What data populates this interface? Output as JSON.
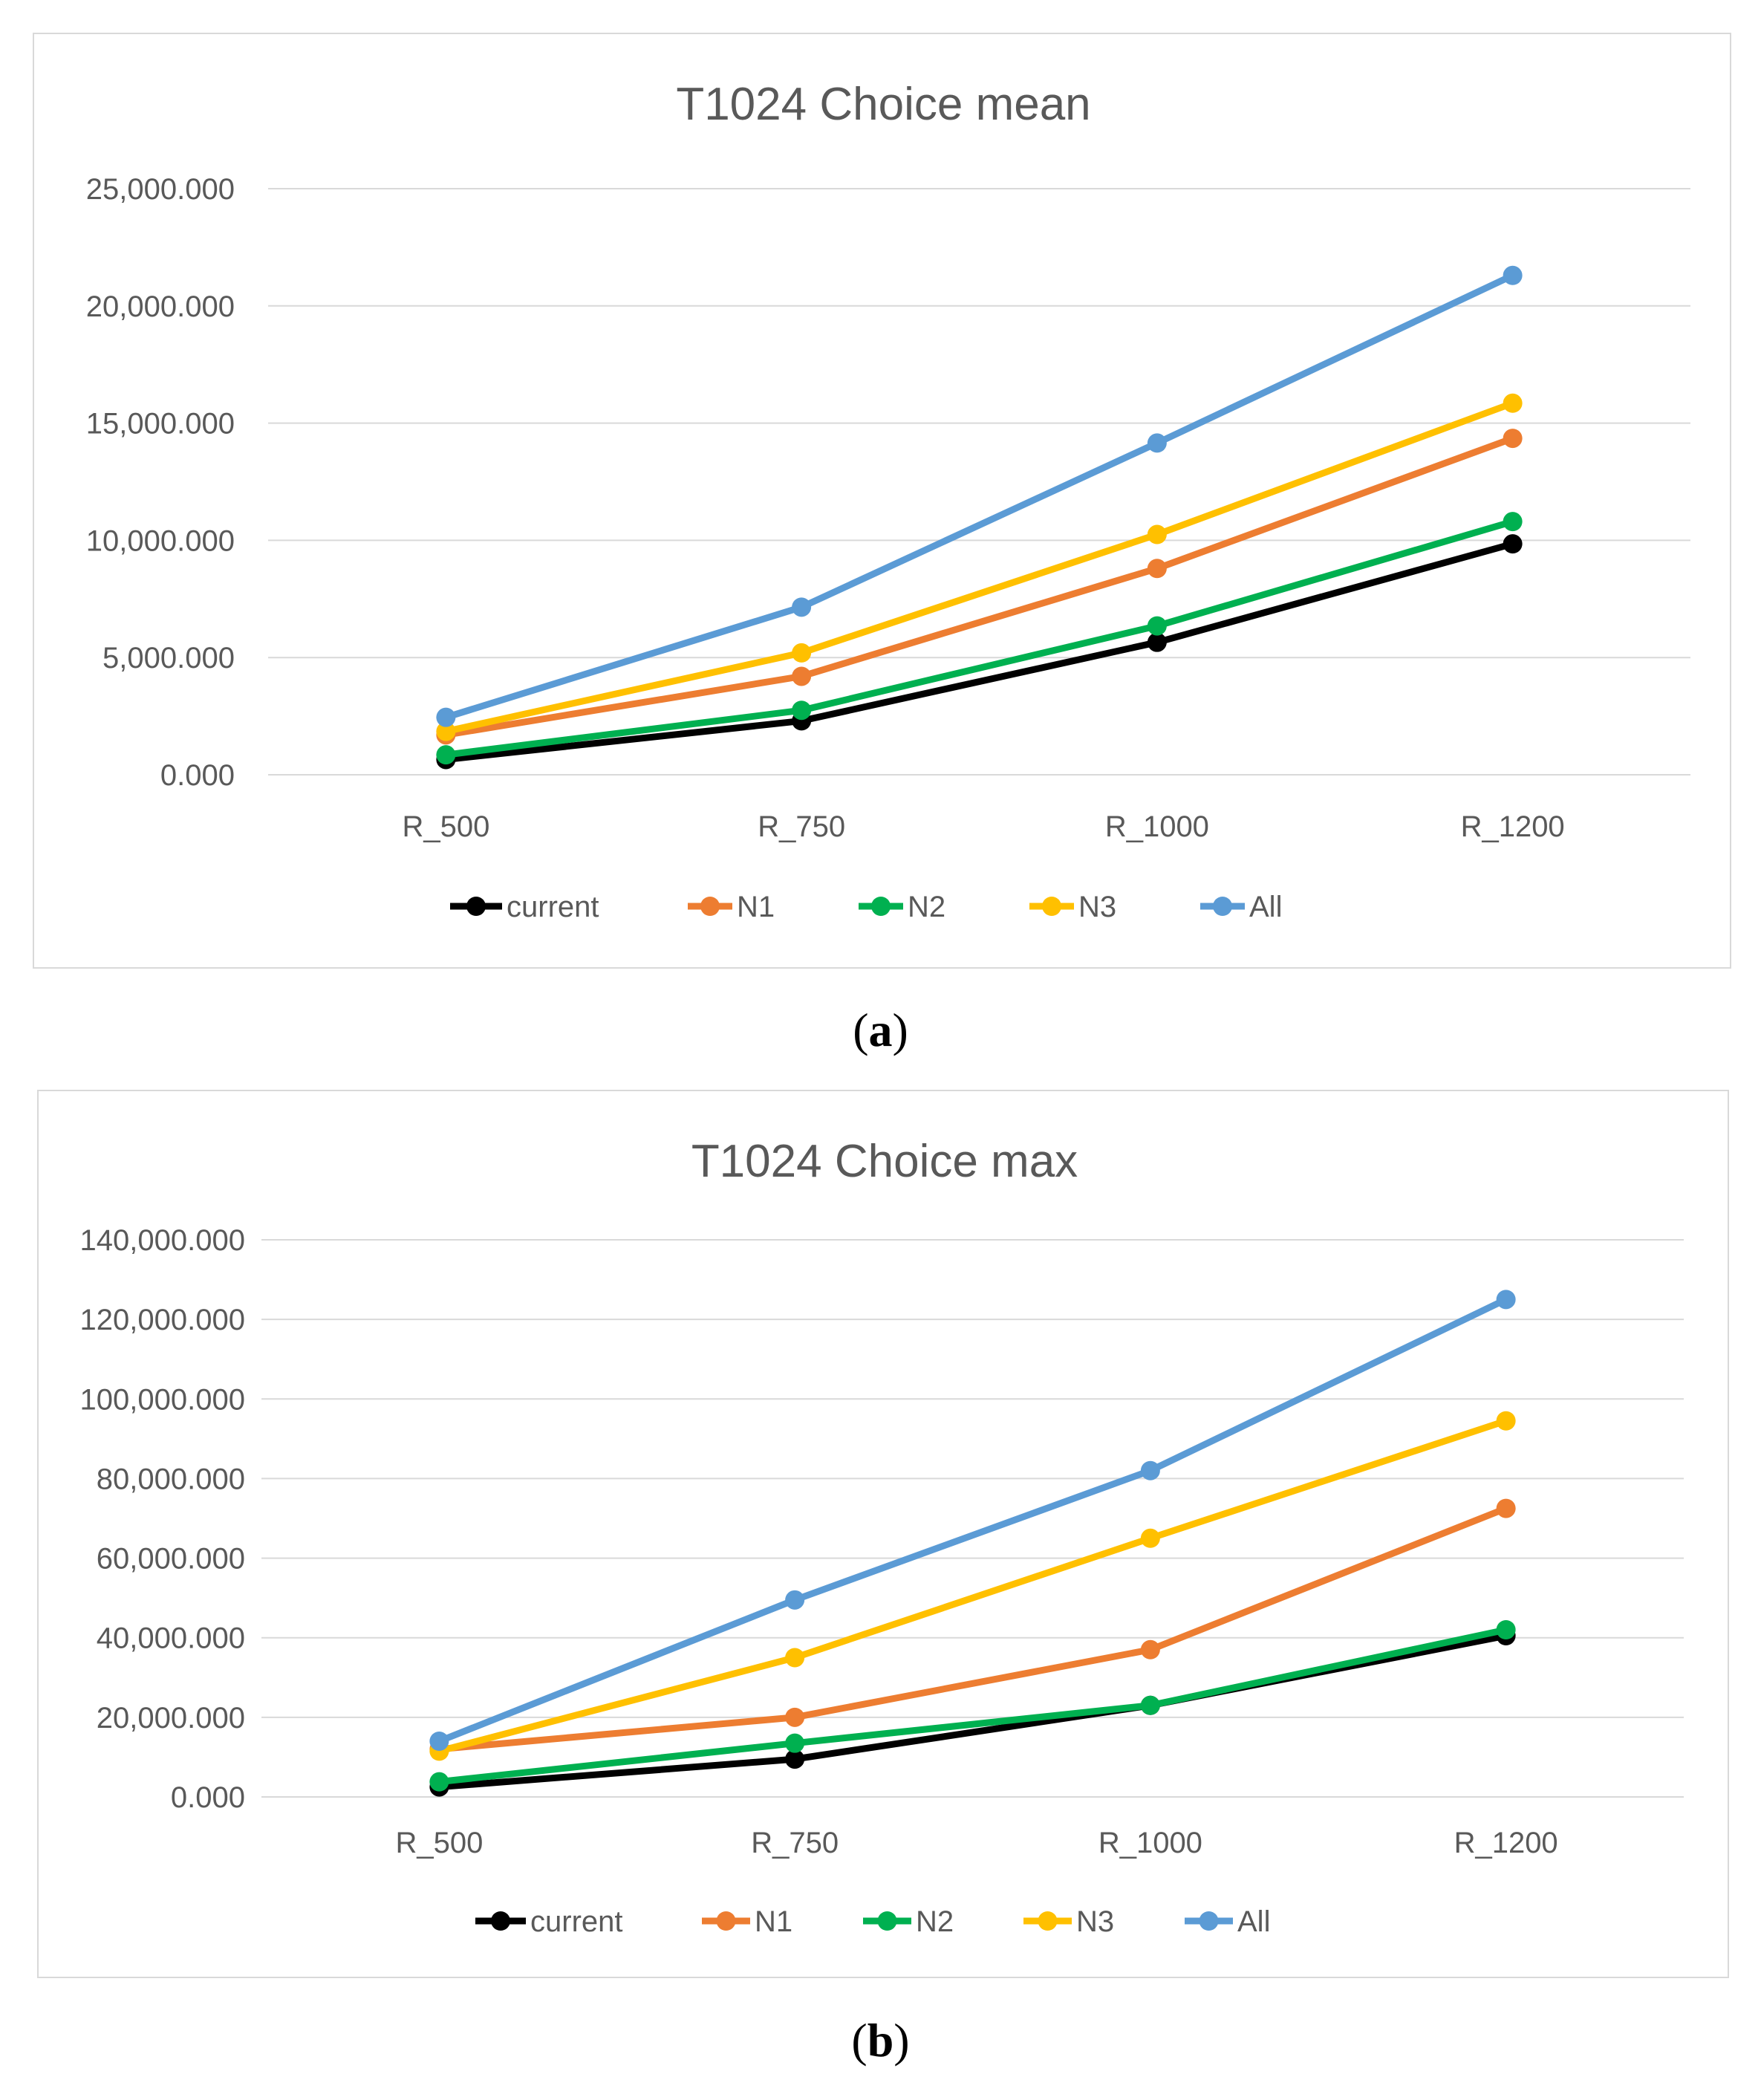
{
  "captions": {
    "a": "a",
    "b": "b"
  },
  "chart_data": [
    {
      "type": "line",
      "title": "T1024 Choice mean",
      "categories": [
        "R_500",
        "R_750",
        "R_1000",
        "R_1200"
      ],
      "ylim": [
        0,
        25000
      ],
      "yticks": [
        0,
        5000,
        10000,
        15000,
        20000,
        25000
      ],
      "ytick_labels": [
        "0.000",
        "5,000.000",
        "10,000.000",
        "15,000.000",
        "20,000.000",
        "25,000.000"
      ],
      "grid": true,
      "legend": "bottom",
      "series": [
        {
          "name": "current",
          "color": "#000000",
          "values": [
            650,
            2300,
            5650,
            9850
          ]
        },
        {
          "name": "N1",
          "color": "#ED7D31",
          "values": [
            1700,
            4200,
            8800,
            14350
          ]
        },
        {
          "name": "N2",
          "color": "#00B050",
          "values": [
            850,
            2750,
            6350,
            10800
          ]
        },
        {
          "name": "N3",
          "color": "#FFC000",
          "values": [
            1850,
            5200,
            10250,
            15850
          ]
        },
        {
          "name": "All",
          "color": "#5B9BD5",
          "values": [
            2450,
            7150,
            14150,
            21300
          ]
        }
      ]
    },
    {
      "type": "line",
      "title": "T1024 Choice max",
      "categories": [
        "R_500",
        "R_750",
        "R_1000",
        "R_1200"
      ],
      "ylim": [
        0,
        140000
      ],
      "yticks": [
        0,
        20000,
        40000,
        60000,
        80000,
        100000,
        120000,
        140000
      ],
      "ytick_labels": [
        "0.000",
        "20,000.000",
        "40,000.000",
        "60,000.000",
        "80,000.000",
        "100,000.000",
        "120,000.000",
        "140,000.000"
      ],
      "grid": true,
      "legend": "bottom",
      "series": [
        {
          "name": "current",
          "color": "#000000",
          "values": [
            2500,
            9500,
            23000,
            40500
          ]
        },
        {
          "name": "N1",
          "color": "#ED7D31",
          "values": [
            12000,
            20000,
            37000,
            72500
          ]
        },
        {
          "name": "N2",
          "color": "#00B050",
          "values": [
            3800,
            13500,
            23000,
            42000
          ]
        },
        {
          "name": "N3",
          "color": "#FFC000",
          "values": [
            11500,
            35000,
            65000,
            94500
          ]
        },
        {
          "name": "All",
          "color": "#5B9BD5",
          "values": [
            14000,
            49500,
            82000,
            125000
          ]
        }
      ]
    }
  ]
}
